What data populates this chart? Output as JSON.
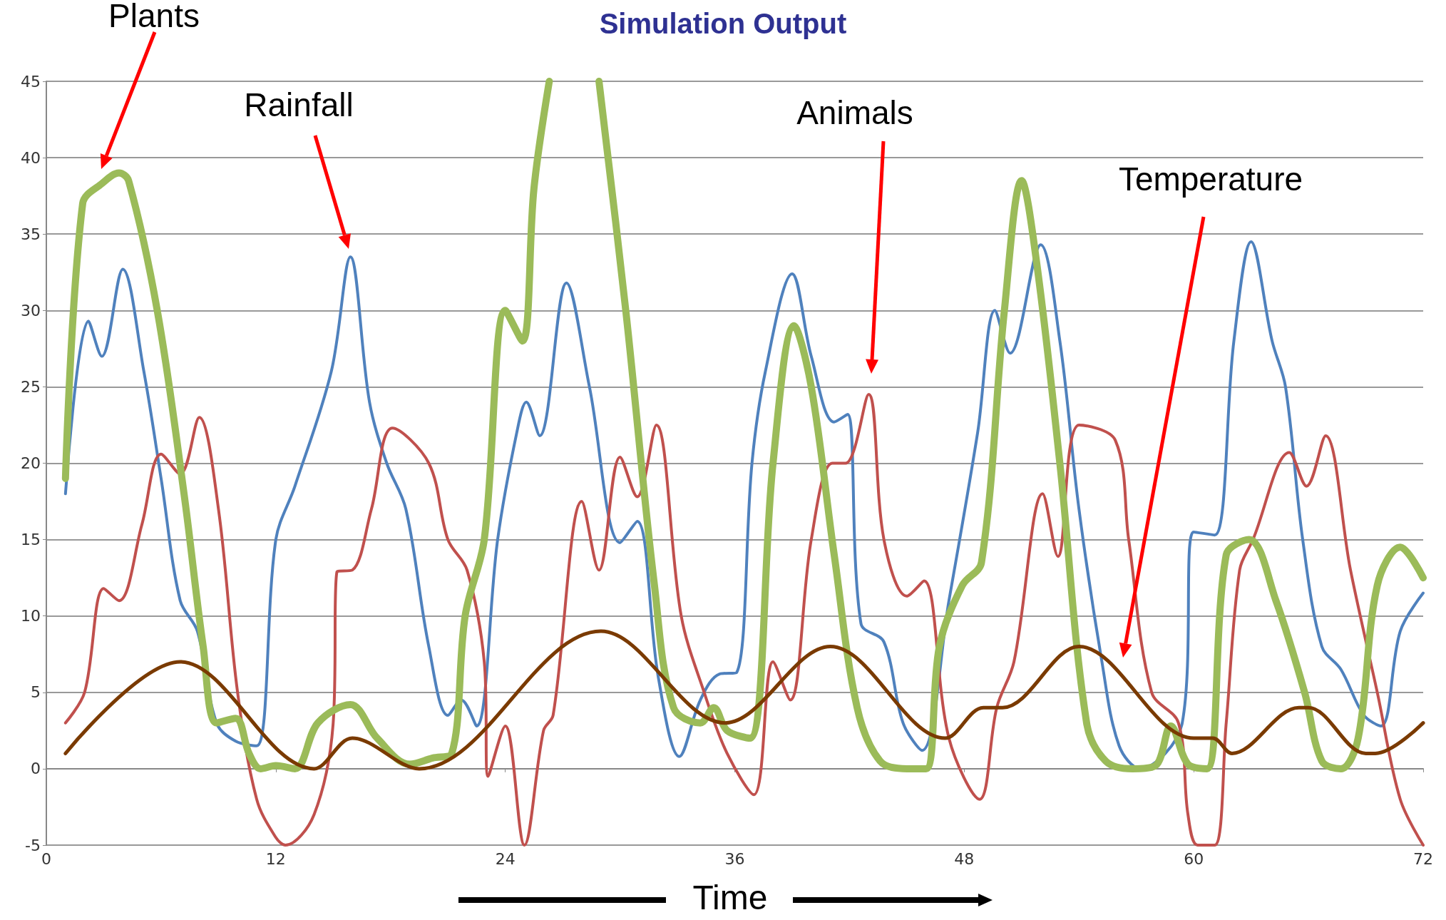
{
  "chart_data": {
    "type": "line",
    "title": "Simulation Output",
    "xlabel": "Time",
    "xlim": [
      0,
      72
    ],
    "xticks": [
      0,
      12,
      24,
      36,
      48,
      60,
      72
    ],
    "ylim": [
      -5,
      45
    ],
    "yticks": [
      -5,
      0,
      5,
      10,
      15,
      20,
      25,
      30,
      35,
      40,
      45
    ],
    "grid": "y",
    "marker": "none",
    "line_style": "solid",
    "series": [
      {
        "color": "#4f81bd",
        "x": [
          1,
          2.2,
          2.9,
          4,
          5.1,
          6,
          7,
          7.9,
          8.9,
          9.9,
          11,
          12,
          13,
          14.9,
          15.9,
          16.9,
          17.8,
          18.8,
          20,
          21,
          21.7,
          22.5,
          23.6,
          24.6,
          25.1,
          25.8,
          27.2,
          28.4,
          30,
          30.9,
          32,
          33.1,
          34.2,
          35.2,
          36.1,
          36.9,
          37.6,
          39,
          40,
          41.2,
          41.9,
          42.6,
          43.8,
          44.8,
          45.8,
          47.2,
          48.7,
          49.6,
          50.4,
          52,
          53,
          54,
          55.2,
          56.1,
          57.2,
          59.4,
          60,
          61.1,
          62.1,
          63,
          64.1,
          64.8,
          65.7,
          66.7,
          67.7,
          68.9,
          69.8,
          70.8,
          72
        ],
        "values": [
          18,
          29.3,
          27,
          32.7,
          26,
          19,
          11,
          9,
          3,
          1.8,
          1.5,
          15,
          18.5,
          26,
          33.5,
          24,
          20,
          17,
          8,
          3.5,
          4.5,
          2.8,
          15,
          22,
          24,
          21.8,
          31.8,
          25,
          14.8,
          16.2,
          6,
          0.8,
          4.5,
          6.2,
          6.3,
          20,
          26,
          32.4,
          27,
          22.7,
          23.2,
          9.5,
          8.3,
          3,
          1.2,
          11,
          22,
          30,
          27.2,
          34.3,
          28,
          17,
          7,
          1.5,
          0,
          3,
          15.5,
          15.3,
          28,
          34.5,
          28,
          25,
          15,
          8,
          6.5,
          3.5,
          2.8,
          9,
          11.5
        ]
      },
      {
        "color": "#c0504d",
        "x": [
          1,
          2,
          3,
          3.8,
          5,
          6,
          7,
          8,
          9,
          10,
          11,
          12,
          12.5,
          14,
          15,
          15.2,
          16,
          17,
          18.1,
          20,
          21,
          22,
          22.9,
          23.1,
          24,
          25,
          26,
          26.5,
          28,
          28.9,
          30,
          30.9,
          31.9,
          33.2,
          34.4,
          35.6,
          37,
          38,
          38.9,
          40,
          41.1,
          41.8,
          43,
          43.8,
          45,
          45.9,
          47.2,
          48.8,
          49.7,
          50.6,
          52.1,
          52.9,
          54,
          55.9,
          56.6,
          57.8,
          59.2,
          59.7,
          60.2,
          61.1,
          61.7,
          62.4,
          63.1,
          65,
          65.9,
          66.9,
          68.2,
          69.6,
          70.8,
          72
        ],
        "values": [
          3,
          5,
          11.8,
          11,
          16,
          20.6,
          19.3,
          23,
          17,
          5,
          -2,
          -4.5,
          -5,
          -3,
          3,
          12.9,
          13,
          17,
          22.3,
          20,
          15,
          13,
          7,
          -0.5,
          2.8,
          -5,
          2.5,
          3.5,
          17.5,
          13,
          20.4,
          17.8,
          22.5,
          10,
          5,
          1,
          -1.7,
          7,
          4.5,
          15,
          20,
          20,
          24.5,
          15,
          11.3,
          12.3,
          2,
          -2,
          4,
          7,
          18,
          13.9,
          22.5,
          21.5,
          15,
          5,
          3,
          -3,
          -5,
          -5,
          3,
          13,
          15,
          20.7,
          18.5,
          21.8,
          13,
          5,
          -2,
          -5
        ]
      },
      {
        "color": "#9bbb59",
        "x": [
          1,
          1.9,
          2.9,
          3.8,
          4.3,
          5.8,
          7.2,
          8.2,
          8.9,
          9.9,
          10.6,
          11.2,
          12,
          13,
          14.2,
          15.9,
          17.3,
          19,
          20.2,
          21.2,
          21.9,
          22.9,
          24,
          24.9,
          25.5,
          26.3,
          27.6,
          28.9,
          30.3,
          31.8,
          32.8,
          34.2,
          34.9,
          35.6,
          36.8,
          38,
          39.1,
          40,
          41.2,
          42.4,
          43.6,
          45,
          46,
          46.7,
          47.9,
          48.9,
          50.1,
          51,
          51.8,
          53,
          54.4,
          55.4,
          56.8,
          58,
          58.8,
          59.7,
          60.7,
          61.7,
          62.9,
          64.3,
          65.8,
          66.7,
          67.7,
          68.6,
          69.6,
          70.8,
          72
        ],
        "values": [
          19,
          37,
          38.3,
          39,
          38.5,
          30,
          18,
          8,
          3,
          3.3,
          1,
          0,
          0.2,
          0,
          3,
          4.2,
          2,
          0.3,
          0.7,
          1,
          10,
          15,
          30,
          28,
          38,
          45,
          null,
          45,
          30,
          12,
          4,
          3,
          4,
          2.5,
          2,
          20,
          29,
          25,
          14,
          4,
          0.5,
          0,
          0,
          8,
          12,
          13.5,
          30,
          38.5,
          33,
          20,
          3,
          0.5,
          0,
          0.2,
          2.8,
          0.3,
          0,
          14,
          15,
          11,
          5,
          0.5,
          0,
          2,
          12,
          14.5,
          12.5
        ]
      },
      {
        "color": "#7a3a00",
        "x": [
          1,
          7,
          14,
          16,
          19.5,
          29,
          35.5,
          41,
          47,
          49,
          50,
          54,
          60,
          61,
          62,
          65.5,
          66,
          69,
          69.5,
          72
        ],
        "values": [
          1,
          7,
          0,
          2,
          0,
          9,
          3,
          8,
          2,
          4,
          4,
          8,
          2,
          2,
          1,
          4,
          4,
          1,
          1,
          3
        ]
      }
    ],
    "annotations": [
      "Plants",
      "Rainfall",
      "Animals",
      "Temperature"
    ]
  }
}
